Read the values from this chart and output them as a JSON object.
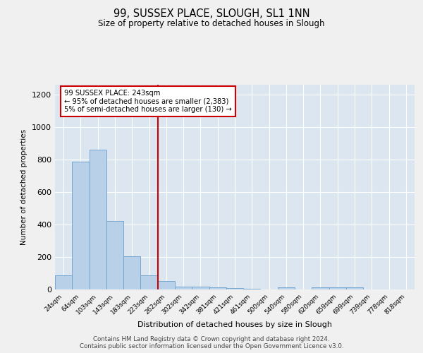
{
  "title": "99, SUSSEX PLACE, SLOUGH, SL1 1NN",
  "subtitle": "Size of property relative to detached houses in Slough",
  "xlabel": "Distribution of detached houses by size in Slough",
  "ylabel": "Number of detached properties",
  "categories": [
    "24sqm",
    "64sqm",
    "103sqm",
    "143sqm",
    "183sqm",
    "223sqm",
    "262sqm",
    "302sqm",
    "342sqm",
    "381sqm",
    "421sqm",
    "461sqm",
    "500sqm",
    "540sqm",
    "580sqm",
    "620sqm",
    "659sqm",
    "699sqm",
    "739sqm",
    "778sqm",
    "818sqm"
  ],
  "values": [
    85,
    785,
    860,
    420,
    205,
    85,
    52,
    18,
    18,
    12,
    10,
    5,
    0,
    12,
    0,
    12,
    12,
    12,
    0,
    0,
    0
  ],
  "bar_color": "#b8d0e8",
  "bar_edge_color": "#6aa0cc",
  "vline_index": 5.5,
  "vline_color": "#cc0000",
  "annotation_text": "99 SUSSEX PLACE: 243sqm\n← 95% of detached houses are smaller (2,383)\n5% of semi-detached houses are larger (130) →",
  "annotation_box_color": "#ffffff",
  "annotation_box_edge": "#cc0000",
  "ylim": [
    0,
    1260
  ],
  "yticks": [
    0,
    200,
    400,
    600,
    800,
    1000,
    1200
  ],
  "background_color": "#dce6f0",
  "fig_background": "#f0f0f0",
  "footer_line1": "Contains HM Land Registry data © Crown copyright and database right 2024.",
  "footer_line2": "Contains public sector information licensed under the Open Government Licence v3.0."
}
